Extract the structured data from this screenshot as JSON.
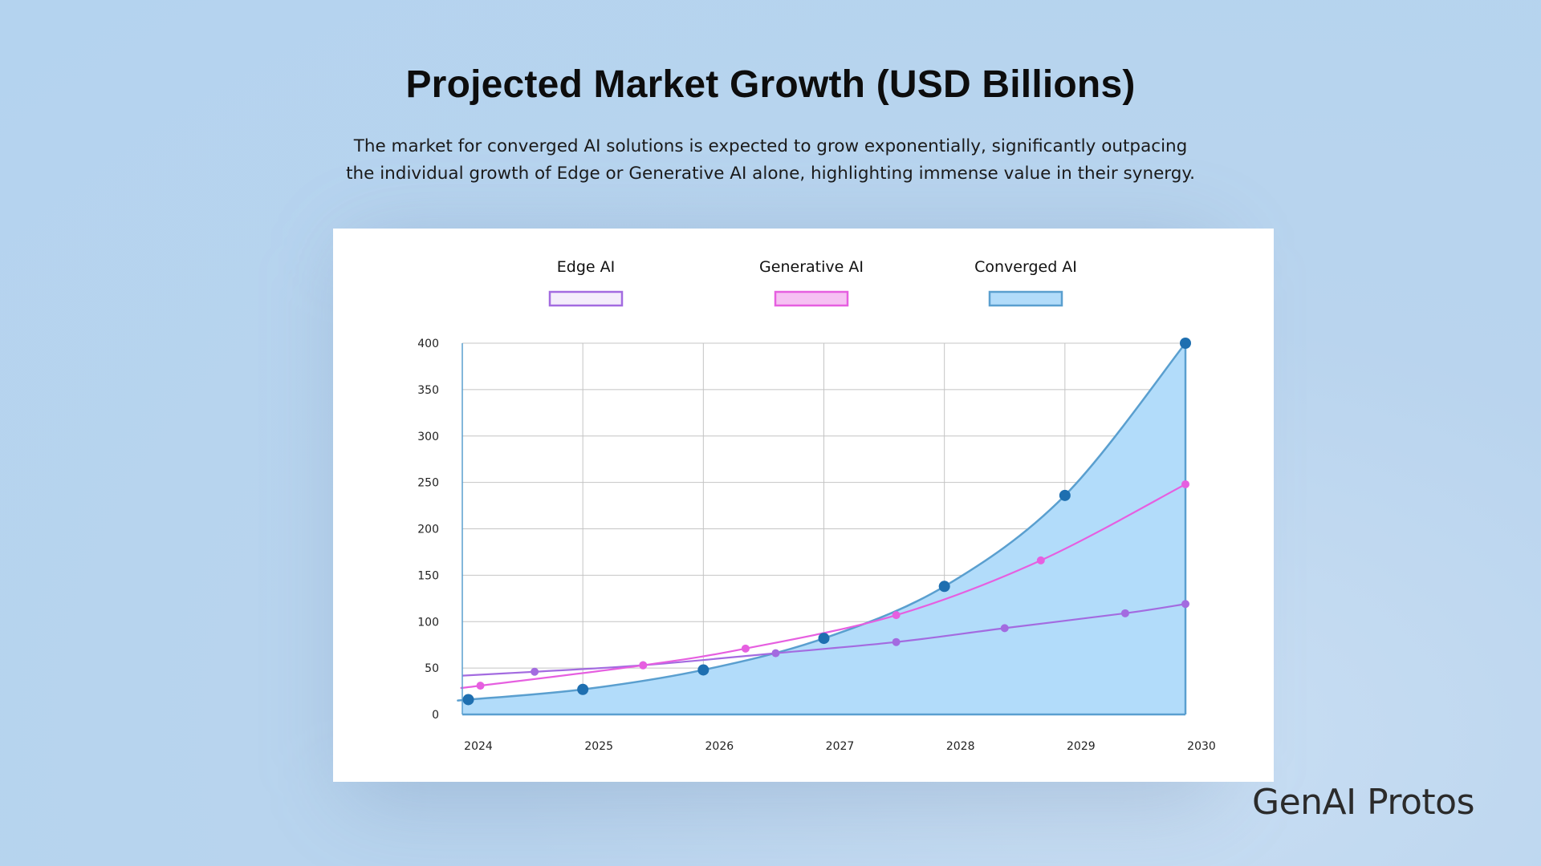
{
  "page": {
    "title": "Projected Market Growth (USD Billions)",
    "subtitle_lines": [
      "The market for converged AI solutions is expected to grow exponentially, significantly outpacing",
      "the individual growth of Edge or Generative AI alone, highlighting immense value in their synergy."
    ],
    "brand": "GenAI Protos"
  },
  "chart_data": {
    "type": "line",
    "title": "Projected Market Growth (USD Billions)",
    "xlabel": "",
    "ylabel": "",
    "x_ticks": [
      "2024",
      "2025",
      "2026",
      "2027",
      "2028",
      "2029",
      "2030"
    ],
    "y_ticks": [
      0,
      50,
      100,
      150,
      200,
      250,
      300,
      350,
      400
    ],
    "xlim": [
      2024,
      2030
    ],
    "ylim": [
      0,
      400
    ],
    "grid": true,
    "legend_position": "top",
    "series": [
      {
        "name": "Edge AI",
        "stroke": "#a36be0",
        "fill": "#f4edfb",
        "filled_area": false,
        "points": [
          [
            2024.6,
            46
          ],
          [
            2025.5,
            53
          ],
          [
            2026.6,
            66
          ],
          [
            2027.6,
            78
          ],
          [
            2028.5,
            93
          ],
          [
            2029.5,
            109
          ],
          [
            2030,
            119
          ]
        ]
      },
      {
        "name": "Generative AI",
        "stroke": "#e65fe0",
        "fill": "#f6c1f3",
        "filled_area": false,
        "points": [
          [
            2024.15,
            31
          ],
          [
            2025.5,
            53
          ],
          [
            2026.35,
            71
          ],
          [
            2027.6,
            107
          ],
          [
            2028.8,
            166
          ],
          [
            2030,
            248
          ]
        ]
      },
      {
        "name": "Converged AI",
        "stroke": "#5a9fcf",
        "fill": "#b2dcfa",
        "point_color": "#1e6fb0",
        "filled_area": true,
        "points": [
          [
            2024.05,
            16
          ],
          [
            2025,
            27
          ],
          [
            2026,
            48
          ],
          [
            2027,
            82
          ],
          [
            2028,
            138
          ],
          [
            2029,
            236
          ],
          [
            2030,
            400
          ]
        ]
      }
    ]
  }
}
